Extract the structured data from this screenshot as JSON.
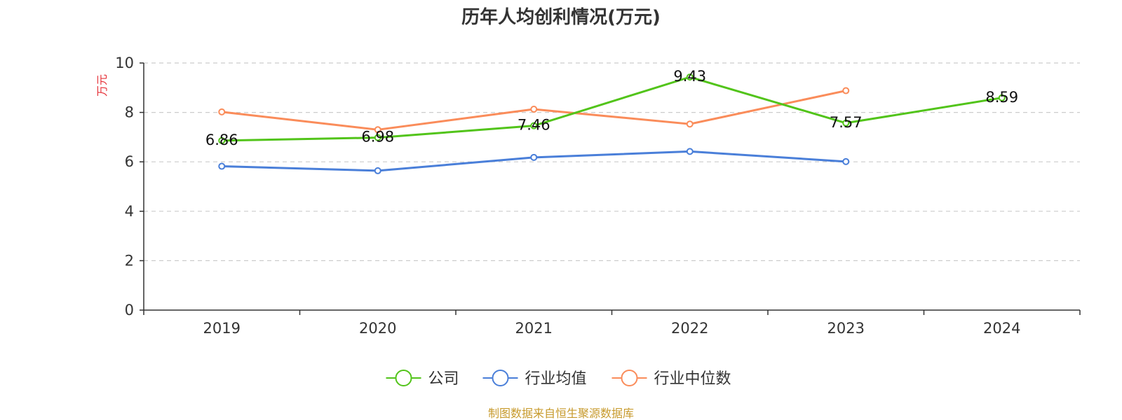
{
  "chart_data": {
    "type": "line",
    "title": "历年人均创利情况(万元)",
    "ylabel": "万元",
    "xlabel": "",
    "categories": [
      "2019",
      "2020",
      "2021",
      "2022",
      "2023",
      "2024"
    ],
    "ylim": [
      0,
      10
    ],
    "yticks": [
      0,
      2,
      4,
      6,
      8,
      10
    ],
    "grid": true,
    "legend_position": "bottom",
    "series": [
      {
        "name": "公司",
        "color": "#52c41a",
        "values": [
          6.86,
          6.98,
          7.46,
          9.43,
          7.57,
          8.59
        ],
        "labels": [
          "6.86",
          "6.98",
          "7.46",
          "9.43",
          "7.57",
          "8.59"
        ]
      },
      {
        "name": "行业均值",
        "color": "#4a7fd9",
        "values": [
          5.82,
          5.64,
          6.18,
          6.42,
          6.01,
          null
        ]
      },
      {
        "name": "行业中位数",
        "color": "#fa8c5a",
        "values": [
          8.02,
          7.3,
          8.13,
          7.53,
          8.88,
          null
        ]
      }
    ]
  },
  "source": "制图数据来自恒生聚源数据库"
}
